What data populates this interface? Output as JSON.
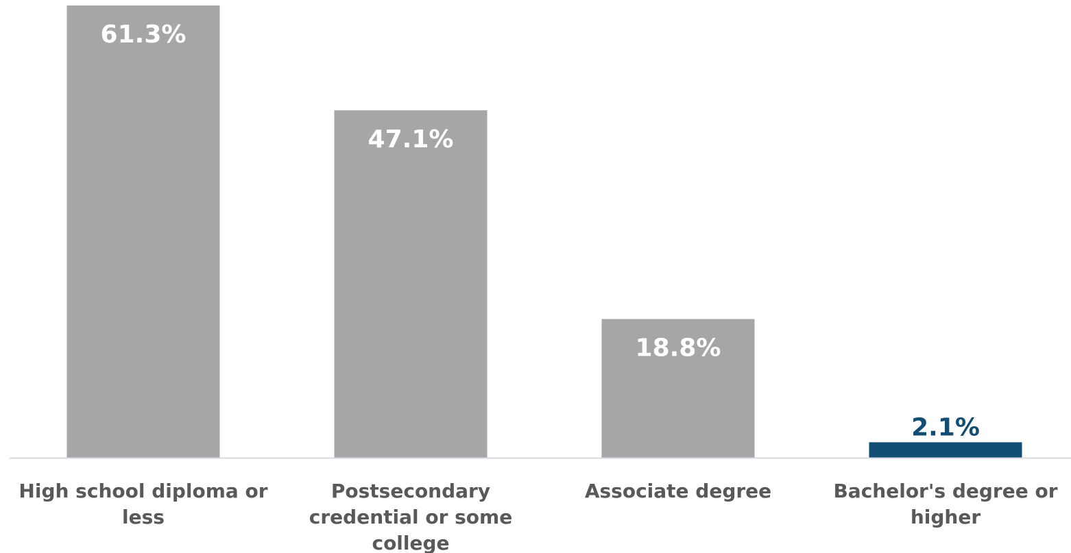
{
  "chart_data": {
    "type": "bar",
    "categories": [
      [
        "High school diploma or",
        "less"
      ],
      [
        "Postsecondary",
        "credential or some",
        "college"
      ],
      [
        "Associate degree"
      ],
      [
        "Bachelor's degree or",
        "higher"
      ]
    ],
    "values": [
      61.3,
      47.1,
      18.8,
      2.1
    ],
    "value_labels": [
      "61.3%",
      "47.1%",
      "18.8%",
      "2.1%"
    ],
    "ylim": [
      0,
      61.3
    ],
    "grid": false,
    "legend": "none",
    "title": "",
    "xlabel": "",
    "ylabel": "",
    "colors": {
      "default_bar": "#a6a6a6",
      "highlight_bar": "#124e73",
      "inside_label": "#ffffff",
      "highlight_label": "#124e73",
      "category_label": "#595959",
      "baseline": "#d9d9e6"
    },
    "highlight_index": 3
  }
}
